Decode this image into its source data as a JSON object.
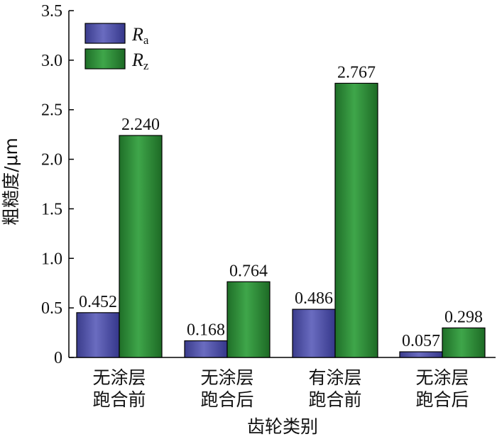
{
  "chart_data": {
    "type": "bar",
    "categories": [
      [
        "无涂层",
        "跑合前"
      ],
      [
        "无涂层",
        "跑合后"
      ],
      [
        "有涂层",
        "跑合前"
      ],
      [
        "无涂层",
        "跑合后"
      ]
    ],
    "series": [
      {
        "name": "Ra",
        "name_main": "R",
        "name_sub": "a",
        "color": "#4648a0",
        "values": [
          0.452,
          0.168,
          0.486,
          0.057
        ],
        "labels": [
          "0.452",
          "0.168",
          "0.486",
          "0.057"
        ]
      },
      {
        "name": "Rz",
        "name_main": "R",
        "name_sub": "z",
        "color": "#2e8b36",
        "values": [
          2.24,
          0.764,
          2.767,
          0.298
        ],
        "labels": [
          "2.240",
          "0.764",
          "2.767",
          "0.298"
        ]
      }
    ],
    "xlabel": "齿轮类别",
    "ylabel": "粗糙度/μm",
    "ylim": [
      0,
      3.5
    ],
    "yticks": [
      0,
      0.5,
      1.0,
      1.5,
      2.0,
      2.5,
      3.0,
      3.5
    ],
    "ytick_labels": [
      "0",
      "0.5",
      "1.0",
      "1.5",
      "2.0",
      "2.5",
      "3.0",
      "3.5"
    ],
    "grid": false,
    "legend_position": "top-left"
  }
}
